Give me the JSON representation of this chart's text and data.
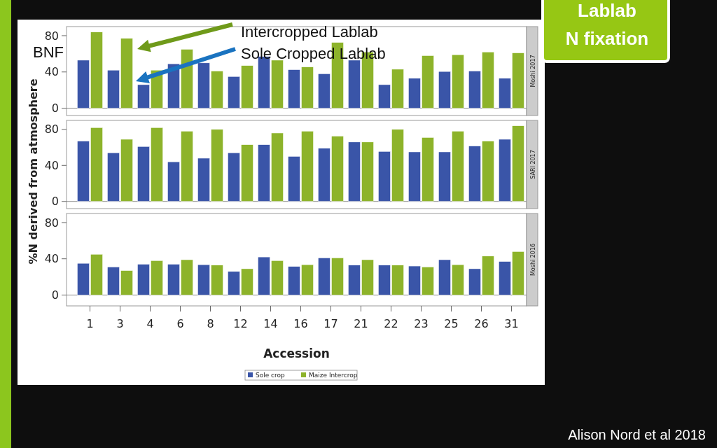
{
  "chart_data": [
    {
      "type": "bar",
      "categories": [
        null,
        null,
        null,
        null,
        null,
        null,
        null,
        null,
        null,
        null,
        null,
        null,
        null,
        null,
        null
      ],
      "ylim": [
        -8,
        90
      ],
      "yticks": [
        0,
        40,
        80
      ],
      "tick_labels": "y",
      "grid": false,
      "legend": false,
      "ref_lines": [
        {
          "axis": "y",
          "value": 0,
          "color": "#888888"
        }
      ],
      "series": [
        {
          "color": "#3a55a8",
          "values": [
            53,
            42,
            26,
            49,
            50,
            35,
            57,
            42.5,
            38,
            53,
            26,
            33,
            40.5,
            41,
            33
          ]
        },
        {
          "color": "#8db32a",
          "values": [
            84,
            77,
            42,
            65,
            41,
            47,
            53,
            45.5,
            72.5,
            62,
            43,
            58,
            59,
            62,
            61
          ]
        }
      ],
      "annotations": [
        "Lablab N fixation",
        "BNF",
        "Intercropped Lablab",
        "Sole Cropped Lablab",
        "Alison Nord et al 2018",
        "Moshi 2017"
      ]
    },
    {
      "type": "bar",
      "ylabel": "%N derived from atmosphere",
      "categories": [
        null,
        null,
        null,
        null,
        null,
        null,
        null,
        null,
        null,
        null,
        null,
        null,
        null,
        null,
        null
      ],
      "ylim": [
        -8,
        90
      ],
      "yticks": [
        0,
        40,
        80
      ],
      "tick_labels": "y",
      "grid": false,
      "legend": false,
      "ref_lines": [
        {
          "axis": "y",
          "value": 0,
          "color": "#888888"
        }
      ],
      "series": [
        {
          "color": "#3a55a8",
          "values": [
            67,
            54,
            61,
            44,
            48,
            54,
            63,
            50,
            59,
            66,
            55.5,
            55,
            55,
            61.5,
            69
          ]
        },
        {
          "color": "#8db32a",
          "values": [
            82,
            69,
            82,
            78,
            80,
            63,
            76,
            78,
            72.5,
            66,
            80,
            71,
            78,
            67,
            84
          ]
        }
      ],
      "annotations": [
        "SARI 2017"
      ]
    },
    {
      "type": "bar",
      "xlabel": "Accession",
      "categories": [
        "1",
        "3",
        "4",
        "6",
        "8",
        "12",
        "14",
        "16",
        "17",
        "21",
        "22",
        "23",
        "25",
        "26",
        "31"
      ],
      "ylim": [
        -12,
        90
      ],
      "yticks": [
        0,
        40,
        80
      ],
      "grid": false,
      "legend": "bottom",
      "ref_lines": [
        {
          "axis": "y",
          "value": 0,
          "color": "#888888"
        }
      ],
      "series": [
        {
          "name": "Sole crop",
          "color": "#3a55a8",
          "values": [
            35,
            31,
            34,
            34,
            33.5,
            26,
            42,
            31.5,
            41,
            33,
            33,
            32,
            39,
            29,
            37
          ]
        },
        {
          "name": "Maize Intercrop",
          "color": "#8db32a",
          "values": [
            45,
            27,
            38,
            39,
            33,
            29,
            38,
            33.5,
            41,
            39,
            33,
            31,
            33.5,
            43,
            48
          ]
        }
      ],
      "annotations": [
        "Moshi 2016"
      ]
    }
  ]
}
